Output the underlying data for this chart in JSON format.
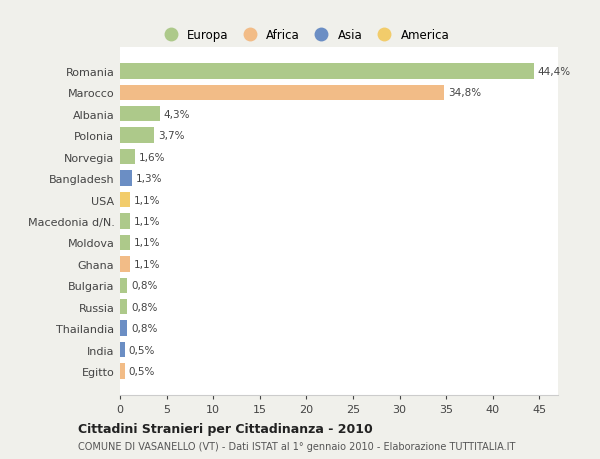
{
  "countries": [
    "Romania",
    "Marocco",
    "Albania",
    "Polonia",
    "Norvegia",
    "Bangladesh",
    "USA",
    "Macedonia d/N.",
    "Moldova",
    "Ghana",
    "Bulgaria",
    "Russia",
    "Thailandia",
    "India",
    "Egitto"
  ],
  "values": [
    44.4,
    34.8,
    4.3,
    3.7,
    1.6,
    1.3,
    1.1,
    1.1,
    1.1,
    1.1,
    0.8,
    0.8,
    0.8,
    0.5,
    0.5
  ],
  "labels": [
    "44,4%",
    "34,8%",
    "4,3%",
    "3,7%",
    "1,6%",
    "1,3%",
    "1,1%",
    "1,1%",
    "1,1%",
    "1,1%",
    "0,8%",
    "0,8%",
    "0,8%",
    "0,5%",
    "0,5%"
  ],
  "colors": [
    "#adc98a",
    "#f2bc87",
    "#adc98a",
    "#adc98a",
    "#adc98a",
    "#6b8ec4",
    "#f2cc6b",
    "#adc98a",
    "#adc98a",
    "#f2bc87",
    "#adc98a",
    "#adc98a",
    "#6b8ec4",
    "#6b8ec4",
    "#f2bc87"
  ],
  "legend_labels": [
    "Europa",
    "Africa",
    "Asia",
    "America"
  ],
  "legend_colors": [
    "#adc98a",
    "#f2bc87",
    "#6b8ec4",
    "#f2cc6b"
  ],
  "title": "Cittadini Stranieri per Cittadinanza - 2010",
  "subtitle": "COMUNE DI VASANELLO (VT) - Dati ISTAT al 1° gennaio 2010 - Elaborazione TUTTITALIA.IT",
  "xlim": [
    0,
    47
  ],
  "xticks": [
    0,
    5,
    10,
    15,
    20,
    25,
    30,
    35,
    40,
    45
  ],
  "background_color": "#f0f0eb",
  "plot_bg_color": "#ffffff",
  "grid_color": "#e8e8e8",
  "bar_height": 0.72,
  "label_fontsize": 7.5,
  "ytick_fontsize": 8.0,
  "xtick_fontsize": 8.0
}
